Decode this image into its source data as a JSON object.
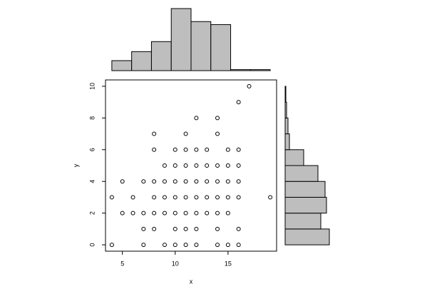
{
  "chart_data": [
    {
      "type": "scatter",
      "x_label": "x",
      "y_label": "y",
      "x": [
        17,
        16,
        12,
        14,
        8,
        11,
        14,
        8,
        10,
        11,
        12,
        13,
        15,
        16,
        9,
        10,
        11,
        12,
        13,
        14,
        15,
        16,
        5,
        7,
        8,
        9,
        10,
        11,
        12,
        13,
        14,
        15,
        16,
        4,
        6,
        8,
        9,
        10,
        11,
        12,
        13,
        14,
        15,
        16,
        19,
        5,
        6,
        7,
        8,
        9,
        10,
        11,
        12,
        13,
        14,
        15,
        7,
        8,
        10,
        11,
        12,
        14,
        16,
        4,
        7,
        9,
        10,
        11,
        12,
        14,
        15,
        16
      ],
      "y": [
        10,
        9,
        8,
        8,
        7,
        7,
        7,
        6,
        6,
        6,
        6,
        6,
        6,
        6,
        5,
        5,
        5,
        5,
        5,
        5,
        5,
        5,
        4,
        4,
        4,
        4,
        4,
        4,
        4,
        4,
        4,
        4,
        4,
        3,
        3,
        3,
        3,
        3,
        3,
        3,
        3,
        3,
        3,
        3,
        3,
        2,
        2,
        2,
        2,
        2,
        2,
        2,
        2,
        2,
        2,
        2,
        1,
        1,
        1,
        1,
        1,
        1,
        1,
        0,
        0,
        0,
        0,
        0,
        0,
        0,
        0,
        0
      ],
      "xlim": [
        3.4,
        19.6
      ],
      "ylim": [
        -0.4,
        10.4
      ],
      "xticks": [
        5,
        10,
        15
      ],
      "yticks": [
        0,
        2,
        4,
        6,
        8,
        10
      ],
      "color": "#000000"
    },
    {
      "type": "histogram",
      "orientation": "vertical",
      "bins": [
        4,
        5.875,
        7.75,
        9.625,
        11.5,
        13.375,
        15.25,
        17.125,
        19
      ],
      "values": [
        10,
        19,
        29,
        62,
        49,
        46,
        1,
        1
      ],
      "color": "#bebebe"
    },
    {
      "type": "histogram",
      "orientation": "horizontal",
      "bins": [
        0,
        1,
        2,
        3,
        4,
        5,
        6,
        7,
        8,
        9,
        10
      ],
      "values": [
        62,
        50,
        58,
        56,
        46,
        26,
        6,
        4,
        2,
        1
      ],
      "color": "#bebebe"
    }
  ]
}
